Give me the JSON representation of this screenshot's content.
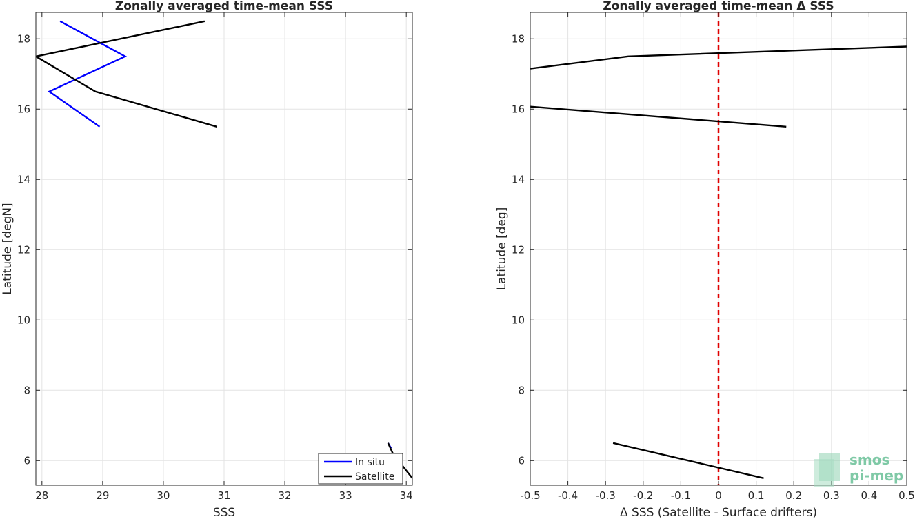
{
  "chart_data": [
    {
      "type": "line",
      "title": "Zonally averaged time-mean SSS",
      "xlabel": "SSS",
      "ylabel": "Latitude [degN]",
      "xlim": [
        27.9,
        34.1
      ],
      "ylim": [
        5.3,
        18.75
      ],
      "xticks": [
        28,
        29,
        30,
        31,
        32,
        33,
        34
      ],
      "yticks": [
        6,
        8,
        10,
        12,
        14,
        16,
        18
      ],
      "grid": true,
      "legend_position": "bottom-right",
      "series": [
        {
          "name": "In situ",
          "color": "#0000ff",
          "segments": [
            [
              [
                28.3,
                18.5
              ],
              [
                29.37,
                17.5
              ],
              [
                28.12,
                16.5
              ],
              [
                28.95,
                15.5
              ]
            ],
            [
              [
                33.7,
                6.5
              ],
              [
                33.75,
                6.35
              ]
            ]
          ]
        },
        {
          "name": "Satellite",
          "color": "#000000",
          "segments": [
            [
              [
                30.68,
                18.5
              ],
              [
                27.9,
                17.5
              ],
              [
                28.88,
                16.5
              ],
              [
                30.88,
                15.5
              ]
            ],
            [
              [
                33.7,
                6.5
              ],
              [
                33.78,
                6.2
              ],
              [
                34.1,
                5.5
              ]
            ]
          ]
        }
      ]
    },
    {
      "type": "line",
      "title": "Zonally averaged time-mean Δ SSS",
      "xlabel": "Δ SSS (Satellite - Surface drifters)",
      "ylabel": "Latitude [deg]",
      "xlim": [
        -0.5,
        0.5
      ],
      "ylim": [
        5.3,
        18.75
      ],
      "xticks": [
        -0.5,
        -0.4,
        -0.3,
        -0.2,
        -0.1,
        0,
        0.1,
        0.2,
        0.3,
        0.4,
        0.5
      ],
      "xticklabels": [
        "-0.5",
        "-0.4",
        "-0.3",
        "-0.2",
        "-0.1",
        "0",
        "0.1",
        "0.2",
        "0.3",
        "0.4",
        "0.5"
      ],
      "yticks": [
        6,
        8,
        10,
        12,
        14,
        16,
        18
      ],
      "grid": true,
      "zero_line": {
        "x": 0,
        "color": "#e00000",
        "style": "dashed"
      },
      "series": [
        {
          "color": "#000000",
          "segments": [
            [
              [
                -0.5,
                17.15
              ],
              [
                -0.24,
                17.5
              ],
              [
                0.5,
                17.78
              ]
            ],
            [
              [
                -0.5,
                16.07
              ],
              [
                0.18,
                15.5
              ]
            ],
            [
              [
                -0.28,
                6.5
              ],
              [
                0.12,
                5.5
              ]
            ]
          ]
        }
      ]
    }
  ],
  "watermark": {
    "line1": "smos",
    "line2": "pi-mep"
  }
}
